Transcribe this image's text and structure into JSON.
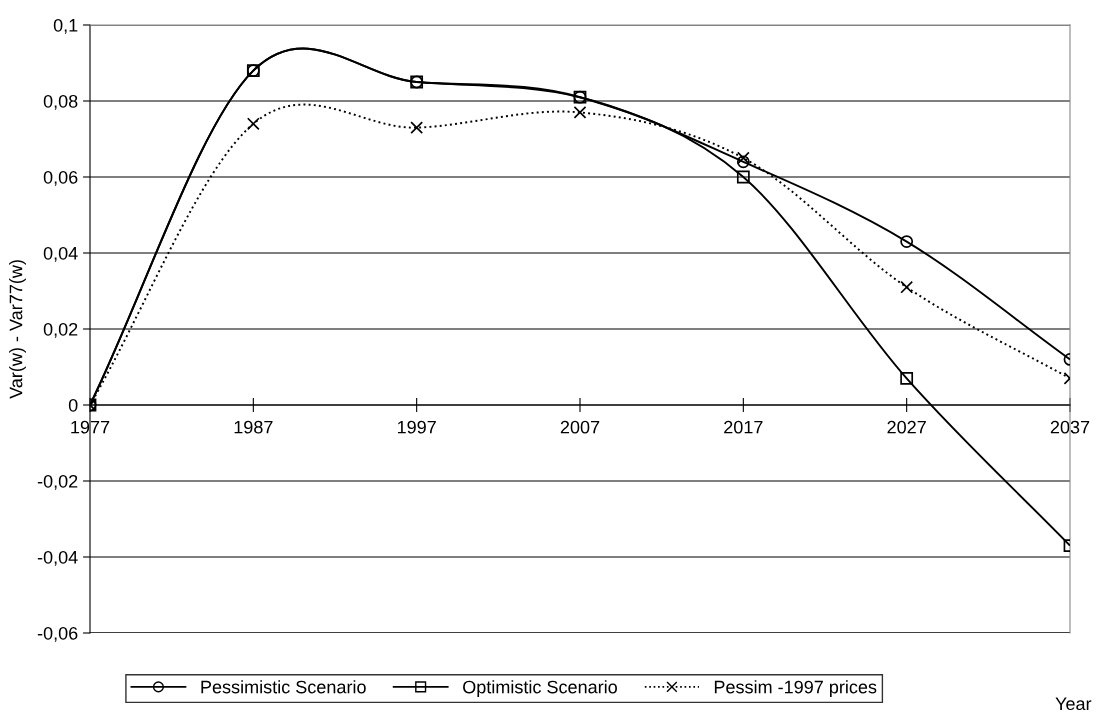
{
  "chart_data": {
    "type": "line",
    "ylabel": "Var(w) - Var77(w)",
    "xlabel": "Year",
    "categories": [
      "1977",
      "1987",
      "1997",
      "2007",
      "2017",
      "2027",
      "2037"
    ],
    "series": [
      {
        "name": "Pessimistic Scenario",
        "color": "#000000",
        "marker": "circle",
        "line_style": "solid",
        "values": [
          0,
          0.088,
          0.085,
          0.081,
          0.064,
          0.043,
          0.012
        ]
      },
      {
        "name": "Optimistic Scenario",
        "color": "#000000",
        "marker": "square",
        "line_style": "solid",
        "values": [
          0,
          0.088,
          0.085,
          0.081,
          0.06,
          0.007,
          -0.037
        ]
      },
      {
        "name": "Pessim -1997 prices",
        "color": "#000000",
        "marker": "cross",
        "line_style": "dotted",
        "values": [
          0,
          0.074,
          0.073,
          0.077,
          0.065,
          0.031,
          0.007
        ]
      }
    ],
    "ylim": [
      -0.06,
      0.1
    ],
    "yticks": [
      {
        "value": -0.06,
        "label": "-0,06"
      },
      {
        "value": -0.04,
        "label": "-0,04"
      },
      {
        "value": -0.02,
        "label": "-0,02"
      },
      0,
      {
        "value": 0.02,
        "label": "0,02"
      },
      {
        "value": 0.04,
        "label": "0,04"
      },
      {
        "value": 0.06,
        "label": "0,06"
      },
      {
        "value": 0.08,
        "label": "0,08"
      },
      {
        "value": 0.1,
        "label": "0,1"
      }
    ],
    "grid": "y",
    "legend": "bottom"
  }
}
